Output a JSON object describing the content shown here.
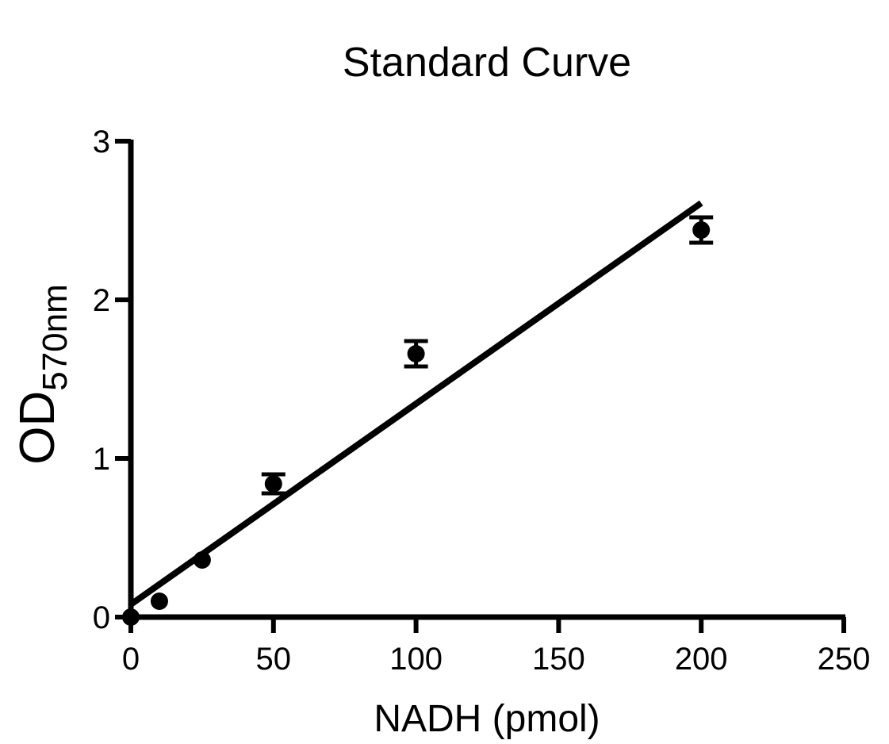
{
  "chart_data": {
    "type": "scatter",
    "title": "Standard Curve",
    "xlabel": "NADH (pmol)",
    "ylabel": {
      "main": "OD",
      "subscript": "570nm"
    },
    "xlim": [
      0,
      250
    ],
    "ylim": [
      0,
      3
    ],
    "xticks": [
      0,
      50,
      100,
      150,
      200,
      250
    ],
    "yticks": [
      0,
      1,
      2,
      3
    ],
    "grid": false,
    "legend": "none",
    "series": [
      {
        "points": [
          {
            "x": 0,
            "y": 0.0,
            "err": 0.0
          },
          {
            "x": 10,
            "y": 0.1,
            "err": 0.0
          },
          {
            "x": 25,
            "y": 0.36,
            "err": 0.0
          },
          {
            "x": 50,
            "y": 0.84,
            "err": 0.06
          },
          {
            "x": 100,
            "y": 1.66,
            "err": 0.08
          },
          {
            "x": 200,
            "y": 2.44,
            "err": 0.08
          }
        ],
        "color": "#000000"
      }
    ],
    "fit_line": {
      "type": "linear",
      "x_start": 0,
      "x_end": 200,
      "slope": 0.01265,
      "intercept": 0.08
    }
  }
}
